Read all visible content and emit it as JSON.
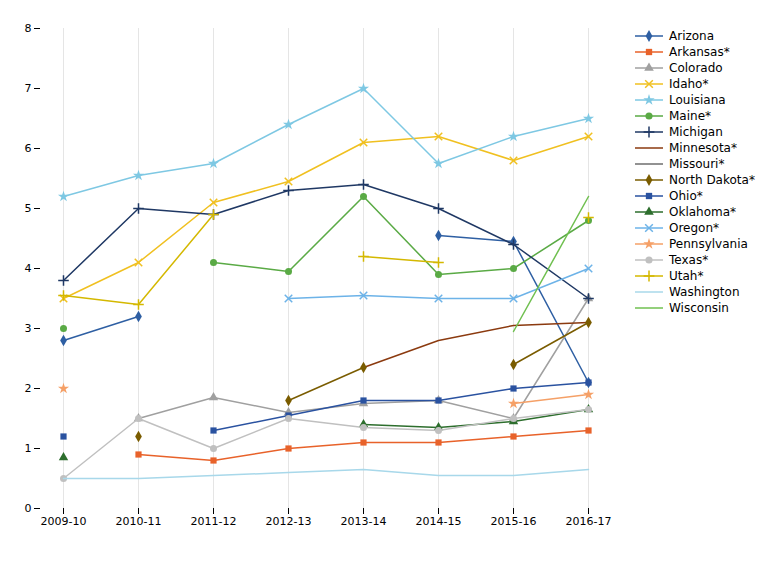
{
  "chart_data": {
    "type": "line",
    "categories": [
      "2009-10",
      "2010-11",
      "2011-12",
      "2012-13",
      "2013-14",
      "2014-15",
      "2015-16",
      "2016-17"
    ],
    "series": [
      {
        "name": "Arizona",
        "color": "#2e5fa3",
        "marker": "diamond",
        "values": [
          2.8,
          3.2,
          null,
          null,
          null,
          4.55,
          4.45,
          2.1
        ]
      },
      {
        "name": "Arkansas*",
        "color": "#e8622a",
        "marker": "square",
        "values": [
          null,
          0.9,
          0.8,
          1.0,
          1.1,
          1.1,
          1.2,
          1.3
        ]
      },
      {
        "name": "Colorado",
        "color": "#a0a0a0",
        "marker": "triangle",
        "values": [
          null,
          1.5,
          1.85,
          1.6,
          1.75,
          1.8,
          1.5,
          3.5
        ]
      },
      {
        "name": "Idaho*",
        "color": "#f0c020",
        "marker": "x",
        "values": [
          3.5,
          4.1,
          5.1,
          5.45,
          6.1,
          6.2,
          5.8,
          6.2
        ]
      },
      {
        "name": "Louisiana",
        "color": "#7ec8e3",
        "marker": "star",
        "values": [
          5.2,
          5.55,
          5.75,
          6.4,
          7.0,
          5.75,
          6.2,
          6.5
        ]
      },
      {
        "name": "Maine*",
        "color": "#5aaa45",
        "marker": "circle",
        "values": [
          3.0,
          null,
          4.1,
          3.95,
          5.2,
          3.9,
          4.0,
          4.8
        ]
      },
      {
        "name": "Michigan",
        "color": "#1f3864",
        "marker": "plus",
        "values": [
          3.8,
          5.0,
          4.9,
          5.3,
          5.4,
          5.0,
          4.4,
          3.5
        ]
      },
      {
        "name": "Minnesota*",
        "color": "#8b3a0f",
        "marker": "none",
        "values": [
          null,
          null,
          null,
          null,
          2.35,
          2.8,
          3.05,
          3.1
        ]
      },
      {
        "name": "Missouri*",
        "color": "#6e6e6e",
        "marker": "none",
        "values": [
          null,
          null,
          null,
          null,
          null,
          null,
          null,
          null
        ]
      },
      {
        "name": "North Dakota*",
        "color": "#7a5c00",
        "marker": "diamond",
        "values": [
          null,
          1.2,
          null,
          1.8,
          2.35,
          null,
          2.4,
          3.1
        ]
      },
      {
        "name": "Ohio*",
        "color": "#2a52a0",
        "marker": "square",
        "values": [
          1.2,
          null,
          1.3,
          1.55,
          1.8,
          1.8,
          2.0,
          2.1
        ]
      },
      {
        "name": "Oklahoma*",
        "color": "#2d6e2d",
        "marker": "triangle",
        "values": [
          0.85,
          null,
          null,
          null,
          1.4,
          1.35,
          1.45,
          1.65
        ]
      },
      {
        "name": "Oregon*",
        "color": "#6db3e8",
        "marker": "x",
        "values": [
          null,
          null,
          null,
          3.5,
          3.55,
          3.5,
          3.5,
          4.0
        ]
      },
      {
        "name": "Pennsylvania",
        "color": "#f5a067",
        "marker": "star",
        "values": [
          2.0,
          null,
          null,
          null,
          null,
          null,
          1.75,
          1.9
        ]
      },
      {
        "name": "Texas*",
        "color": "#c0c0c0",
        "marker": "circle",
        "values": [
          0.5,
          1.5,
          1.0,
          1.5,
          1.35,
          1.3,
          1.5,
          1.65
        ]
      },
      {
        "name": "Utah*",
        "color": "#d4b800",
        "marker": "plus",
        "values": [
          3.55,
          3.4,
          4.9,
          null,
          4.2,
          4.1,
          null,
          4.85
        ]
      },
      {
        "name": "Washington",
        "color": "#a8d8ea",
        "marker": "none",
        "values": [
          0.5,
          0.5,
          0.55,
          0.6,
          0.65,
          0.55,
          0.55,
          0.65
        ]
      },
      {
        "name": "Wisconsin",
        "color": "#70c050",
        "marker": "none",
        "values": [
          null,
          null,
          null,
          null,
          null,
          null,
          2.95,
          5.2
        ]
      }
    ],
    "ylim": [
      0,
      8
    ],
    "yticks": [
      0,
      1,
      2,
      3,
      4,
      5,
      6,
      7,
      8
    ],
    "grid": "x",
    "legend": "right"
  }
}
